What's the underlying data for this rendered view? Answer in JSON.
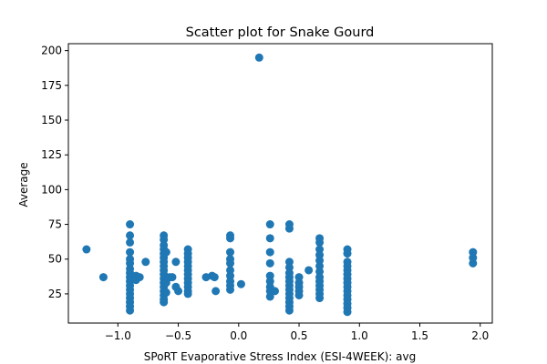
{
  "chart_data": {
    "type": "scatter",
    "title": "Scatter plot for Snake Gourd",
    "xlabel": "SPoRT Evaporative Stress Index (ESI-4WEEK): avg",
    "ylabel": "Average",
    "xlim": [
      -1.41,
      2.1
    ],
    "ylim": [
      4,
      205
    ],
    "xticks": [
      -1.0,
      -0.5,
      0.0,
      0.5,
      1.0,
      1.5,
      2.0
    ],
    "xtick_labels": [
      "−1.0",
      "−0.5",
      "0.0",
      "0.5",
      "1.0",
      "1.5",
      "2.0"
    ],
    "yticks": [
      25,
      50,
      75,
      100,
      125,
      150,
      175,
      200
    ],
    "ytick_labels": [
      "25",
      "50",
      "75",
      "100",
      "125",
      "150",
      "175",
      "200"
    ],
    "grid": false,
    "point_color": "#1f77b4",
    "points": [
      {
        "x": -1.26,
        "y": 57
      },
      {
        "x": -1.12,
        "y": 37
      },
      {
        "x": -0.9,
        "y": 75
      },
      {
        "x": -0.9,
        "y": 67
      },
      {
        "x": -0.9,
        "y": 62
      },
      {
        "x": -0.9,
        "y": 55
      },
      {
        "x": -0.9,
        "y": 50
      },
      {
        "x": -0.9,
        "y": 47
      },
      {
        "x": -0.9,
        "y": 43
      },
      {
        "x": -0.9,
        "y": 40
      },
      {
        "x": -0.9,
        "y": 37
      },
      {
        "x": -0.9,
        "y": 34
      },
      {
        "x": -0.9,
        "y": 31
      },
      {
        "x": -0.9,
        "y": 28
      },
      {
        "x": -0.9,
        "y": 25
      },
      {
        "x": -0.9,
        "y": 22
      },
      {
        "x": -0.9,
        "y": 19
      },
      {
        "x": -0.9,
        "y": 16
      },
      {
        "x": -0.9,
        "y": 13
      },
      {
        "x": -0.85,
        "y": 38
      },
      {
        "x": -0.85,
        "y": 35
      },
      {
        "x": -0.82,
        "y": 37
      },
      {
        "x": -0.77,
        "y": 48
      },
      {
        "x": -0.62,
        "y": 67
      },
      {
        "x": -0.62,
        "y": 64
      },
      {
        "x": -0.62,
        "y": 60
      },
      {
        "x": -0.62,
        "y": 57
      },
      {
        "x": -0.62,
        "y": 54
      },
      {
        "x": -0.62,
        "y": 51
      },
      {
        "x": -0.62,
        "y": 48
      },
      {
        "x": -0.62,
        "y": 45
      },
      {
        "x": -0.62,
        "y": 42
      },
      {
        "x": -0.62,
        "y": 39
      },
      {
        "x": -0.62,
        "y": 36
      },
      {
        "x": -0.62,
        "y": 33
      },
      {
        "x": -0.62,
        "y": 30
      },
      {
        "x": -0.62,
        "y": 27
      },
      {
        "x": -0.62,
        "y": 24
      },
      {
        "x": -0.62,
        "y": 21
      },
      {
        "x": -0.62,
        "y": 19
      },
      {
        "x": -0.6,
        "y": 55
      },
      {
        "x": -0.6,
        "y": 33
      },
      {
        "x": -0.6,
        "y": 26
      },
      {
        "x": -0.57,
        "y": 37
      },
      {
        "x": -0.55,
        "y": 37
      },
      {
        "x": -0.52,
        "y": 48
      },
      {
        "x": -0.52,
        "y": 30
      },
      {
        "x": -0.5,
        "y": 27
      },
      {
        "x": -0.42,
        "y": 57
      },
      {
        "x": -0.42,
        "y": 54
      },
      {
        "x": -0.42,
        "y": 51
      },
      {
        "x": -0.42,
        "y": 48
      },
      {
        "x": -0.42,
        "y": 45
      },
      {
        "x": -0.42,
        "y": 42
      },
      {
        "x": -0.42,
        "y": 39
      },
      {
        "x": -0.42,
        "y": 36
      },
      {
        "x": -0.42,
        "y": 33
      },
      {
        "x": -0.42,
        "y": 30
      },
      {
        "x": -0.42,
        "y": 27
      },
      {
        "x": -0.42,
        "y": 25
      },
      {
        "x": -0.27,
        "y": 37
      },
      {
        "x": -0.22,
        "y": 38
      },
      {
        "x": -0.2,
        "y": 37
      },
      {
        "x": -0.19,
        "y": 27
      },
      {
        "x": -0.07,
        "y": 67
      },
      {
        "x": -0.07,
        "y": 65
      },
      {
        "x": -0.07,
        "y": 55
      },
      {
        "x": -0.07,
        "y": 50
      },
      {
        "x": -0.07,
        "y": 47
      },
      {
        "x": -0.07,
        "y": 42
      },
      {
        "x": -0.07,
        "y": 38
      },
      {
        "x": -0.07,
        "y": 34
      },
      {
        "x": -0.07,
        "y": 31
      },
      {
        "x": -0.07,
        "y": 28
      },
      {
        "x": 0.02,
        "y": 32
      },
      {
        "x": 0.17,
        "y": 195
      },
      {
        "x": 0.26,
        "y": 75
      },
      {
        "x": 0.26,
        "y": 65
      },
      {
        "x": 0.26,
        "y": 55
      },
      {
        "x": 0.26,
        "y": 47
      },
      {
        "x": 0.26,
        "y": 38
      },
      {
        "x": 0.26,
        "y": 34
      },
      {
        "x": 0.26,
        "y": 30
      },
      {
        "x": 0.26,
        "y": 27
      },
      {
        "x": 0.26,
        "y": 23
      },
      {
        "x": 0.3,
        "y": 27
      },
      {
        "x": 0.42,
        "y": 75
      },
      {
        "x": 0.42,
        "y": 72
      },
      {
        "x": 0.42,
        "y": 48
      },
      {
        "x": 0.42,
        "y": 44
      },
      {
        "x": 0.42,
        "y": 40
      },
      {
        "x": 0.42,
        "y": 37
      },
      {
        "x": 0.42,
        "y": 34
      },
      {
        "x": 0.42,
        "y": 31
      },
      {
        "x": 0.42,
        "y": 28
      },
      {
        "x": 0.42,
        "y": 25
      },
      {
        "x": 0.42,
        "y": 22
      },
      {
        "x": 0.42,
        "y": 19
      },
      {
        "x": 0.42,
        "y": 16
      },
      {
        "x": 0.42,
        "y": 13
      },
      {
        "x": 0.5,
        "y": 37
      },
      {
        "x": 0.5,
        "y": 33
      },
      {
        "x": 0.5,
        "y": 30
      },
      {
        "x": 0.5,
        "y": 27
      },
      {
        "x": 0.5,
        "y": 24
      },
      {
        "x": 0.58,
        "y": 42
      },
      {
        "x": 0.67,
        "y": 65
      },
      {
        "x": 0.67,
        "y": 62
      },
      {
        "x": 0.67,
        "y": 57
      },
      {
        "x": 0.67,
        "y": 53
      },
      {
        "x": 0.67,
        "y": 49
      },
      {
        "x": 0.67,
        "y": 45
      },
      {
        "x": 0.67,
        "y": 41
      },
      {
        "x": 0.67,
        "y": 37
      },
      {
        "x": 0.67,
        "y": 34
      },
      {
        "x": 0.67,
        "y": 31
      },
      {
        "x": 0.67,
        "y": 28
      },
      {
        "x": 0.67,
        "y": 25
      },
      {
        "x": 0.67,
        "y": 22
      },
      {
        "x": 0.9,
        "y": 57
      },
      {
        "x": 0.9,
        "y": 54
      },
      {
        "x": 0.9,
        "y": 48
      },
      {
        "x": 0.9,
        "y": 45
      },
      {
        "x": 0.9,
        "y": 42
      },
      {
        "x": 0.9,
        "y": 39
      },
      {
        "x": 0.9,
        "y": 36
      },
      {
        "x": 0.9,
        "y": 33
      },
      {
        "x": 0.9,
        "y": 30
      },
      {
        "x": 0.9,
        "y": 27
      },
      {
        "x": 0.9,
        "y": 24
      },
      {
        "x": 0.9,
        "y": 21
      },
      {
        "x": 0.9,
        "y": 18
      },
      {
        "x": 0.9,
        "y": 15
      },
      {
        "x": 0.9,
        "y": 12
      },
      {
        "x": 1.94,
        "y": 55
      },
      {
        "x": 1.94,
        "y": 51
      },
      {
        "x": 1.94,
        "y": 47
      }
    ]
  }
}
